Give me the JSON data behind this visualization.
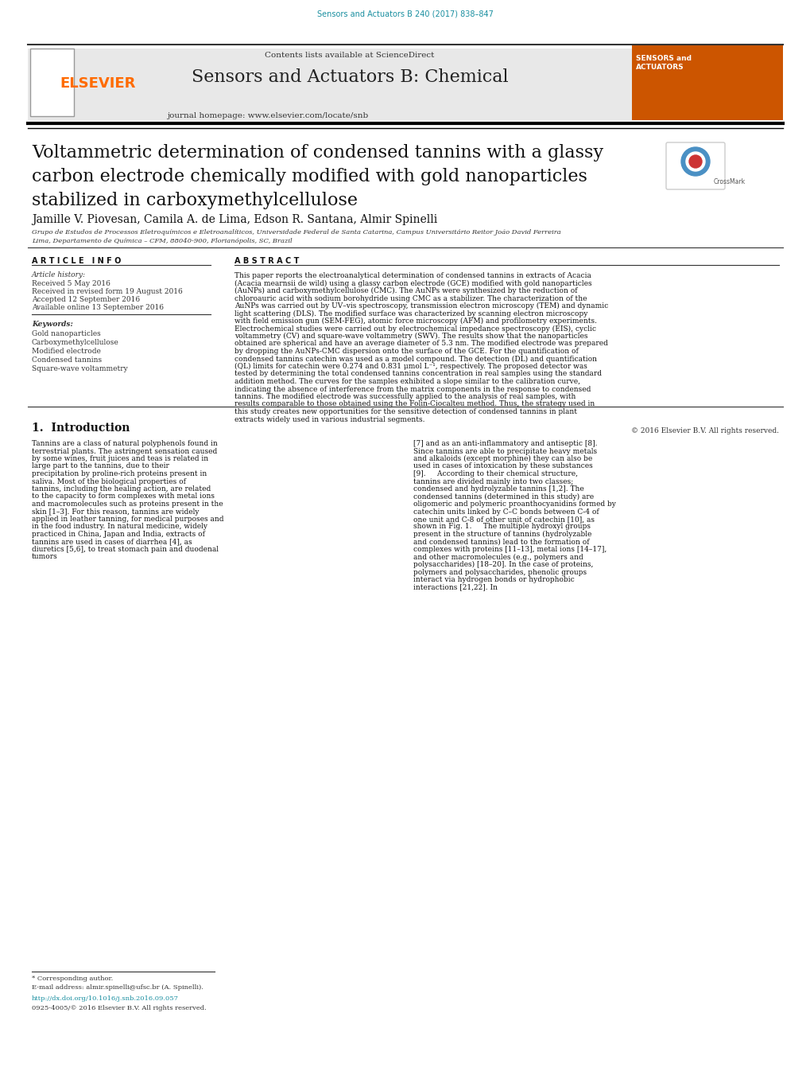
{
  "bg_color": "#ffffff",
  "journal_ref": "Sensors and Actuators B 240 (2017) 838–847",
  "journal_ref_color": "#1a8fa0",
  "header_bg": "#e8e8e8",
  "contents_text": "Contents lists available at ",
  "sciencedirect_text": "ScienceDirect",
  "sciencedirect_color": "#1a8fa0",
  "journal_title": "Sensors and Actuators B: Chemical",
  "journal_homepage_text": "journal homepage: ",
  "journal_url": "www.elsevier.com/locate/snb",
  "journal_url_color": "#1a8fa0",
  "elsevier_color": "#FF6B00",
  "article_title": "Voltammetric determination of condensed tannins with a glassy\ncarbon electrode chemically modified with gold nanoparticles\nstabilized in carboxymethylcellulose",
  "authors": "Jamille V. Piovesan, Camila A. de Lima, Edson R. Santana, Almir Spinelli",
  "affiliation_line1": "Grupo de Estudos de Processos Eletroquímicos e Eletroanalíticos, Universidade Federal de Santa Catarina, Campus Universitário Reitor João David Ferreira",
  "affiliation_line2": "Lima, Departamento de Química – CFM, 88040-900, Florianópolis, SC, Brazil",
  "article_info_header": "A R T I C L E   I N F O",
  "abstract_header": "A B S T R A C T",
  "article_history_label": "Article history:",
  "received": "Received 5 May 2016",
  "received_revised": "Received in revised form 19 August 2016",
  "accepted": "Accepted 12 September 2016",
  "available": "Available online 13 September 2016",
  "keywords_label": "Keywords:",
  "keywords": [
    "Gold nanoparticles",
    "Carboxymethylcellulose",
    "Modified electrode",
    "Condensed tannins",
    "Square-wave voltammetry"
  ],
  "abstract_text": "This paper reports the electroanalytical determination of condensed tannins in extracts of Acacia (Acacia mearnsii de wild) using a glassy carbon electrode (GCE) modified with gold nanoparticles (AuNPs) and carboxymethylcellulose (CMC). The AuNPs were synthesized by the reduction of chloroauric acid with sodium borohydride using CMC as a stabilizer. The characterization of the AuNPs was carried out by UV–vis spectroscopy, transmission electron microscopy (TEM) and dynamic light scattering (DLS). The modified surface was characterized by scanning electron microscopy with field emission gun (SEM-FEG), atomic force microscopy (AFM) and profilometry experiments. Electrochemical studies were carried out by electrochemical impedance spectroscopy (EIS), cyclic voltammetry (CV) and square-wave voltammetry (SWV). The results show that the nanoparticles obtained are spherical and have an average diameter of 5.3 nm. The modified electrode was prepared by dropping the AuNPs-CMC dispersion onto the surface of the GCE. For the quantification of condensed tannins catechin was used as a model compound. The detection (DL) and quantification (QL) limits for catechin were 0.274 and 0.831 μmol L⁻¹, respectively. The proposed detector was tested by determining the total condensed tannins concentration in real samples using the standard addition method. The curves for the samples exhibited a slope similar to the calibration curve, indicating the absence of interference from the matrix components in the response to condensed tannins. The modified electrode was successfully applied to the analysis of real samples, with results comparable to those obtained using the Folin-Ciocalteu method. Thus, the strategy used in this study creates new opportunities for the sensitive detection of condensed tannins in plant extracts widely used in various industrial segments.",
  "copyright_text": "© 2016 Elsevier B.V. All rights reserved.",
  "intro_header": "1.  Introduction",
  "intro_col1": "Tannins are a class of natural polyphenols found in terrestrial plants. The astringent sensation caused by some wines, fruit juices and teas is related in large part to the tannins, due to their precipitation by proline-rich proteins present in saliva. Most of the biological properties of tannins, including the healing action, are related to the capacity to form complexes with metal ions and macromolecules such as proteins present in the skin [1–3]. For this reason, tannins are widely applied in leather tanning, for medical purposes and in the food industry. In natural medicine, widely practiced in China, Japan and India, extracts of tannins are used in cases of diarrhea [4], as diuretics [5,6], to treat stomach pain and duodenal tumors",
  "intro_col2": "[7] and as an anti-inflammatory and antiseptic [8]. Since tannins are able to precipitate heavy metals and alkaloids (except morphine) they can also be used in cases of intoxication by these substances [9].\n    According to their chemical structure, tannins are divided mainly into two classes; condensed and hydrolyzable tannins [1,2]. The condensed tannins (determined in this study) are oligomeric and polymeric proanthocyanidins formed by catechin units linked by C–C bonds between C-4 of one unit and C-8 of other unit of catechin [10], as shown in Fig. 1.\n    The multiple hydroxyl groups present in the structure of tannins (hydrolyzable and condensed tannins) lead to the formation of complexes with proteins [11–13], metal ions [14–17], and other macromolecules (e.g., polymers and polysaccharides) [18–20]. In the case of proteins, polymers and polysaccharides, phenolic groups interact via hydrogen bonds or hydrophobic interactions [21,22]. In",
  "footnote_star": "* Corresponding author.",
  "footnote_email": "E-mail address: almir.spinelli@ufsc.br (A. Spinelli).",
  "footnote_doi": "http://dx.doi.org/10.1016/j.snb.2016.09.057",
  "footnote_issn": "0925-4005/© 2016 Elsevier B.V. All rights reserved.",
  "line_color": "#000000",
  "text_color": "#000000"
}
